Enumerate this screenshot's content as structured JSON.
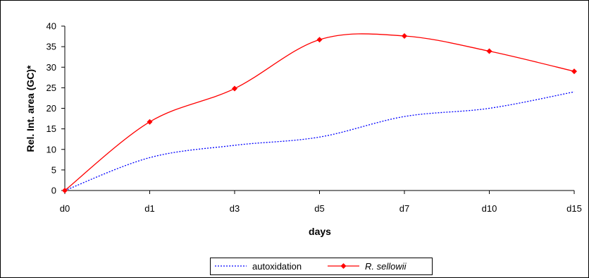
{
  "chart_data": {
    "type": "line",
    "title": "",
    "xlabel": "days",
    "ylabel": "Rel. Int. area (GC)*",
    "categories": [
      "d0",
      "d1",
      "d3",
      "d5",
      "d7",
      "d10",
      "d15"
    ],
    "ylim": [
      0,
      40
    ],
    "yticks": [
      "0",
      "5",
      "10",
      "15",
      "20",
      "25",
      "30",
      "35",
      "40"
    ],
    "grid": false,
    "legend_position": "bottom",
    "series": [
      {
        "name": "autoxidation",
        "values": [
          0,
          8,
          11,
          13,
          18,
          20,
          24
        ],
        "color": "#0000ff",
        "line_style": "dotted",
        "markers": false
      },
      {
        "name": "R. sellowii",
        "values": [
          0,
          16.7,
          24.8,
          36.7,
          37.6,
          33.9,
          29
        ],
        "color": "#ff0000",
        "line_style": "solid",
        "markers": true,
        "italic": true
      }
    ]
  }
}
